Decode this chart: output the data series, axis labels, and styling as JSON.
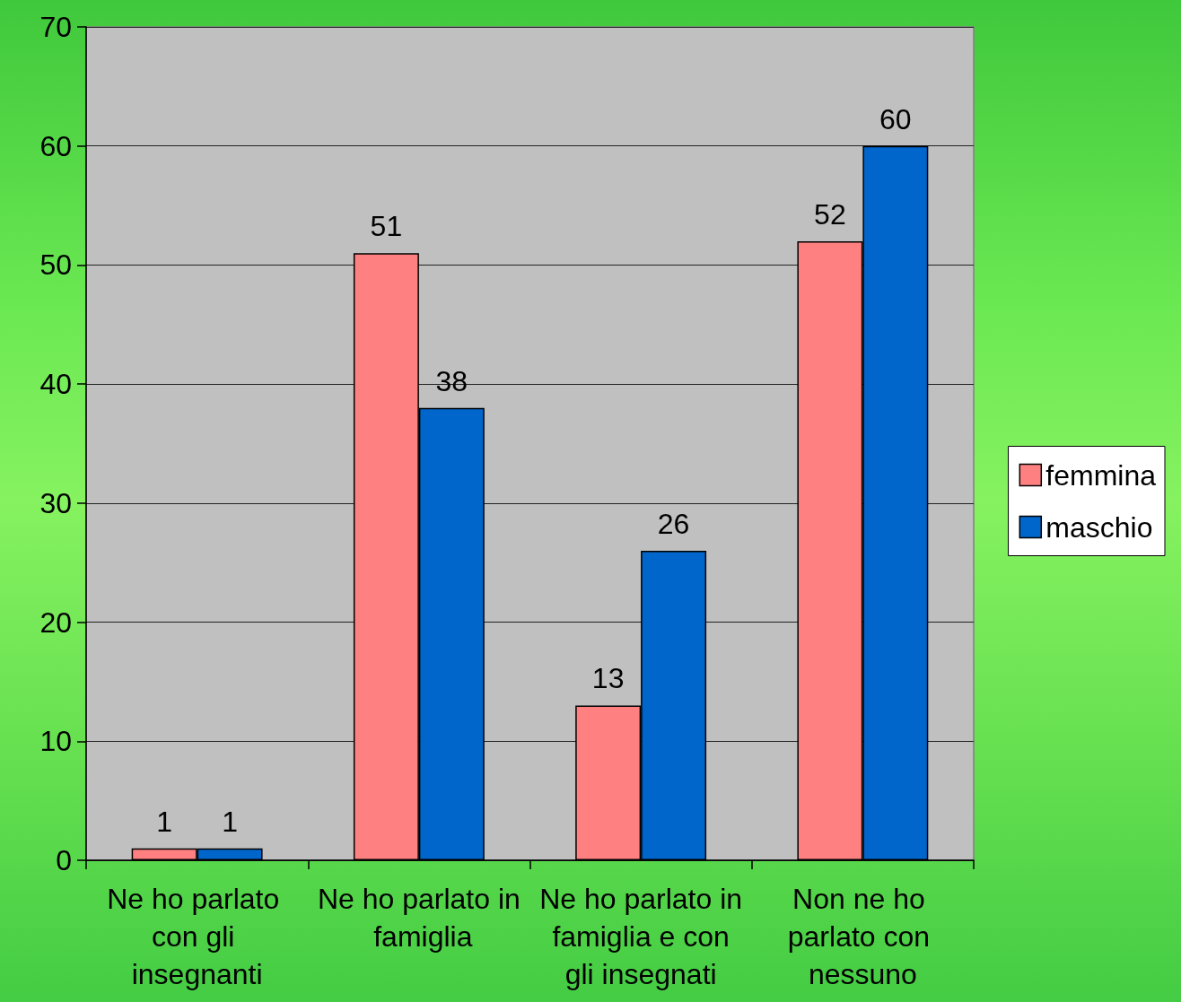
{
  "chart_data": {
    "type": "bar",
    "categories": [
      "Ne ho parlato con gli insegnanti",
      "Ne ho parlato in famiglia",
      "Ne ho parlato in famiglia e con gli insegnati",
      "Non ne ho parlato con nessuno"
    ],
    "series": [
      {
        "name": "femmina",
        "color": "#ff8080",
        "values": [
          1,
          51,
          13,
          52
        ]
      },
      {
        "name": "maschio",
        "color": "#0066cc",
        "values": [
          1,
          38,
          26,
          60
        ]
      }
    ],
    "ylim": [
      0,
      70
    ],
    "yticks": [
      0,
      10,
      20,
      30,
      40,
      50,
      60,
      70
    ],
    "grid": "y",
    "legend": "right",
    "data_labels": true
  }
}
